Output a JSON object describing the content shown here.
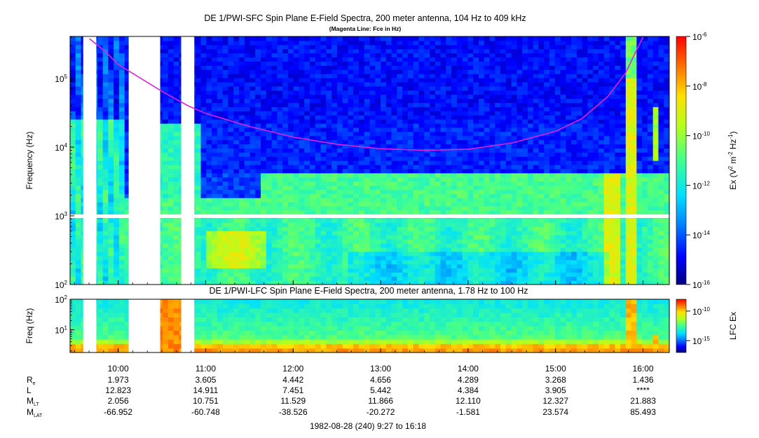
{
  "chart_data": [
    {
      "type": "heatmap",
      "title": "DE 1/PWI-SFC  Spin Plane E-Field Spectra, 200 meter antenna, 104 Hz to 409 kHz",
      "subtitle": "(Magenta Line: Fce in Hz)",
      "ylabel": "Frequency (Hz)",
      "y_scale": "log",
      "ylim": [
        100,
        409000
      ],
      "y_ticks": [
        {
          "value": 100,
          "mantissa": "10",
          "exp": "2"
        },
        {
          "value": 1000,
          "mantissa": "10",
          "exp": "3"
        },
        {
          "value": 10000,
          "mantissa": "10",
          "exp": "4"
        },
        {
          "value": 100000,
          "mantissa": "10",
          "exp": "5"
        }
      ],
      "colorbar": {
        "label_prefix": "Ex (V",
        "label_mid": " m",
        "label_hz": " Hz",
        "label_sup1": "2",
        "label_sup2": "-2",
        "label_sup3": "-1",
        "label_suffix": ")",
        "scale": "log",
        "range": [
          1e-16,
          1e-06
        ],
        "ticks": [
          {
            "value": 1e-06,
            "mantissa": "10",
            "exp": "-6"
          },
          {
            "value": 1e-08,
            "mantissa": "10",
            "exp": "-8"
          },
          {
            "value": 1e-10,
            "mantissa": "10",
            "exp": "-10"
          },
          {
            "value": 1e-12,
            "mantissa": "10",
            "exp": "-12"
          },
          {
            "value": 1e-14,
            "mantissa": "10",
            "exp": "-14"
          },
          {
            "value": 1e-16,
            "mantissa": "10",
            "exp": "-16"
          }
        ]
      },
      "data_gaps_hours": [
        [
          9.6,
          9.75
        ],
        [
          10.12,
          10.48
        ],
        [
          10.72,
          10.87
        ]
      ],
      "fce_line": {
        "name": "Fce in Hz",
        "color": "#e020e0",
        "points": [
          {
            "t": 9.67,
            "f": 380000
          },
          {
            "t": 9.85,
            "f": 250000
          },
          {
            "t": 10.0,
            "f": 160000
          },
          {
            "t": 10.5,
            "f": 65000
          },
          {
            "t": 10.8,
            "f": 40000
          },
          {
            "t": 11.0,
            "f": 31000
          },
          {
            "t": 11.5,
            "f": 20000
          },
          {
            "t": 12.0,
            "f": 14000
          },
          {
            "t": 12.5,
            "f": 11000
          },
          {
            "t": 13.0,
            "f": 9500
          },
          {
            "t": 13.5,
            "f": 9000
          },
          {
            "t": 14.0,
            "f": 9300
          },
          {
            "t": 14.5,
            "f": 11500
          },
          {
            "t": 15.0,
            "f": 17000
          },
          {
            "t": 15.3,
            "f": 26000
          },
          {
            "t": 15.6,
            "f": 55000
          },
          {
            "t": 15.8,
            "f": 120000
          },
          {
            "t": 15.95,
            "f": 300000
          },
          {
            "t": 16.0,
            "f": 400000
          }
        ]
      }
    },
    {
      "type": "heatmap",
      "title": "DE 1/PWI-LFC  Spin Plane E-Field Spectra, 200 meter antenna, 1.78 Hz to 100 Hz",
      "ylabel": "Freq (Hz)",
      "y_scale": "log",
      "ylim": [
        1.78,
        100
      ],
      "y_ticks": [
        {
          "value": 10,
          "mantissa": "10",
          "exp": "1"
        },
        {
          "value": 100,
          "mantissa": "10",
          "exp": "2"
        }
      ],
      "colorbar": {
        "label": "LFC Ex",
        "scale": "log",
        "range": [
          1e-17,
          1e-08
        ],
        "ticks": [
          {
            "value": 1e-10,
            "mantissa": "10",
            "exp": "-10"
          },
          {
            "value": 1e-15,
            "mantissa": "10",
            "exp": "-15"
          }
        ]
      },
      "data_gaps_hours": [
        [
          9.6,
          9.75
        ],
        [
          10.12,
          10.48
        ],
        [
          10.72,
          10.87
        ]
      ]
    }
  ],
  "x_axis": {
    "range_hours": [
      9.45,
      16.3
    ],
    "ticks": [
      {
        "t": 10,
        "label": "10:00"
      },
      {
        "t": 11,
        "label": "11:00"
      },
      {
        "t": 12,
        "label": "12:00"
      },
      {
        "t": 13,
        "label": "13:00"
      },
      {
        "t": 14,
        "label": "14:00"
      },
      {
        "t": 15,
        "label": "15:00"
      },
      {
        "t": 16,
        "label": "16:00"
      }
    ]
  },
  "ephemeris": {
    "rows": [
      {
        "name": "R",
        "sub": "e",
        "values": [
          "1.973",
          "3.605",
          "4.442",
          "4.656",
          "4.289",
          "3.268",
          "1.436"
        ]
      },
      {
        "name": "L",
        "sub": "",
        "values": [
          "12.823",
          "14.911",
          "7.451",
          "5.442",
          "4.384",
          "3.905",
          "****"
        ]
      },
      {
        "name": "M",
        "sub": "LT",
        "values": [
          "2.056",
          "10.751",
          "11.529",
          "11.866",
          "12.110",
          "12.327",
          "21.883"
        ]
      },
      {
        "name": "M",
        "sub": "LAT",
        "values": [
          "-66.952",
          "-60.748",
          "-38.526",
          "-20.272",
          "-1.581",
          "23.574",
          "85.493"
        ]
      }
    ]
  },
  "footer": "1982-08-28 (240) 9:27 to 16:18"
}
